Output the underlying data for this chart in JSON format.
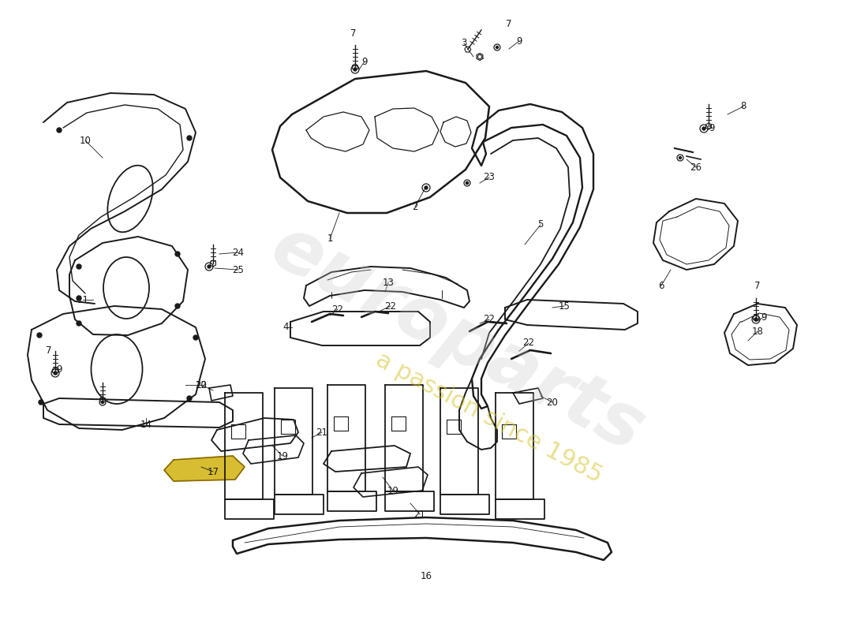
{
  "background_color": "#ffffff",
  "line_color": "#1a1a1a",
  "watermark1": "europarts",
  "watermark2": "a passion since 1985",
  "label_fs": 8.5
}
